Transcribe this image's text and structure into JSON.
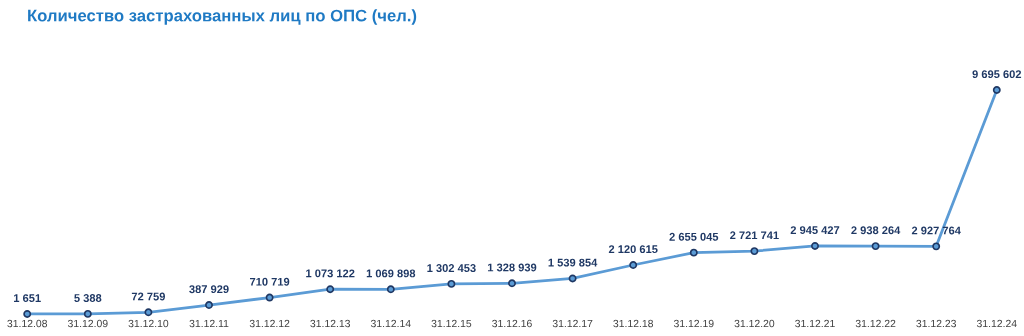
{
  "chart_data": {
    "type": "line",
    "title": "Количество застрахованных лиц по ОПС (чел.)",
    "categories": [
      "31.12.08",
      "31.12.09",
      "31.12.10",
      "31.12.11",
      "31.12.12",
      "31.12.13",
      "31.12.14",
      "31.12.15",
      "31.12.16",
      "31.12.17",
      "31.12.18",
      "31.12.19",
      "31.12.20",
      "31.12.21",
      "31.12.22",
      "31.12.23",
      "31.12.24"
    ],
    "series": [
      {
        "color": "#5b9bd5",
        "values": [
          1651,
          5388,
          72759,
          387929,
          710719,
          1073122,
          1069898,
          1302453,
          1328939,
          1539854,
          2120615,
          2655045,
          2721741,
          2945427,
          2938264,
          2927764,
          9695602
        ],
        "value_labels": [
          "1 651",
          "5 388",
          "72 759",
          "387 929",
          "710 719",
          "1 073 122",
          "1 069 898",
          "1 302 453",
          "1 328 939",
          "1 539 854",
          "2 120 615",
          "2 655 045",
          "2 721 741",
          "2 945 427",
          "2 938 264",
          "2 927 764",
          "9 695 602"
        ]
      }
    ],
    "relative": false,
    "marker": "circle",
    "line_style": "solid",
    "grid": false,
    "legend": false
  }
}
